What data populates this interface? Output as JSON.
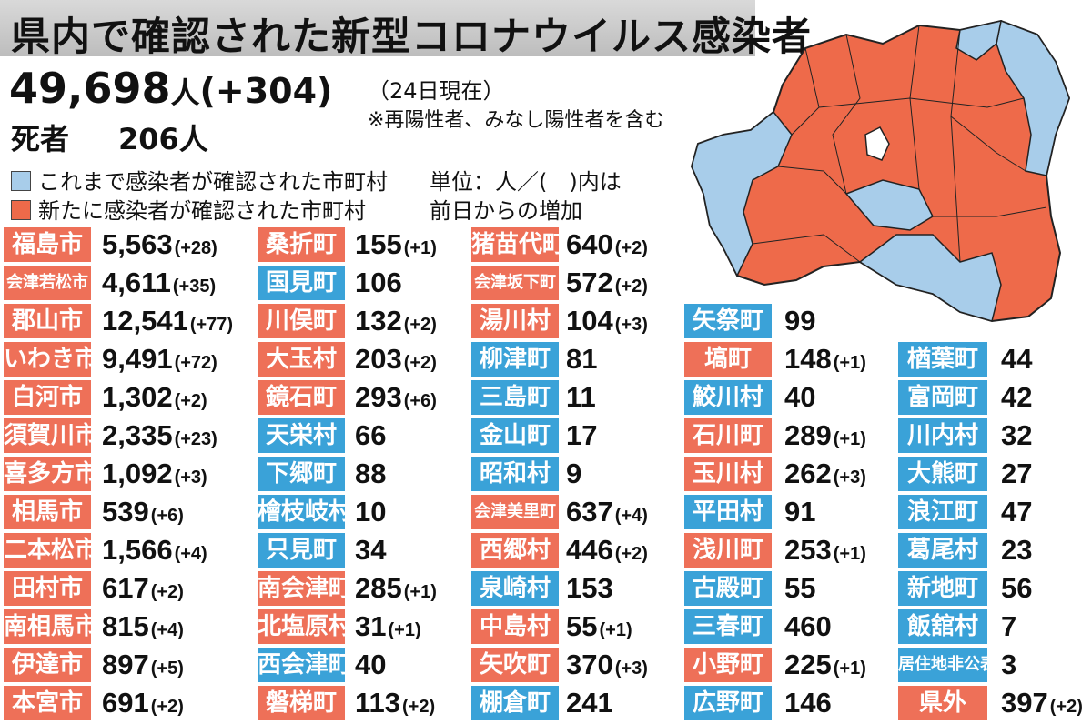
{
  "colors": {
    "new": "#ee7058",
    "old": "#3aa2d8",
    "map_old": "#a8cdea",
    "map_new": "#ee6a4a"
  },
  "header": {
    "title": "県内で確認された新型コロナウイルス感染者",
    "total": "49,698",
    "total_unit": "人",
    "total_diff": "(+304)",
    "as_of": "（24日現在）",
    "note": "※再陽性者、みなし陽性者を含む",
    "deaths_label": "死者",
    "deaths_value": "206人"
  },
  "legend": {
    "old": "これまで感染者が確認された市町村",
    "new": "新たに感染者が確認された市町村",
    "unit_line1": "単位：人／(　)内は",
    "unit_line2": "前日からの増加"
  },
  "columns": [
    [
      {
        "name": "福島市",
        "value": "5,563",
        "diff": "(+28)",
        "status": "new"
      },
      {
        "name": "会津若松市",
        "value": "4,611",
        "diff": "(+35)",
        "status": "new",
        "small": true
      },
      {
        "name": "郡山市",
        "value": "12,541",
        "diff": "(+77)",
        "status": "new"
      },
      {
        "name": "いわき市",
        "value": "9,491",
        "diff": "(+72)",
        "status": "new"
      },
      {
        "name": "白河市",
        "value": "1,302",
        "diff": "(+2)",
        "status": "new"
      },
      {
        "name": "須賀川市",
        "value": "2,335",
        "diff": "(+23)",
        "status": "new"
      },
      {
        "name": "喜多方市",
        "value": "1,092",
        "diff": "(+3)",
        "status": "new"
      },
      {
        "name": "相馬市",
        "value": "539",
        "diff": "(+6)",
        "status": "new"
      },
      {
        "name": "二本松市",
        "value": "1,566",
        "diff": "(+4)",
        "status": "new"
      },
      {
        "name": "田村市",
        "value": "617",
        "diff": "(+2)",
        "status": "new"
      },
      {
        "name": "南相馬市",
        "value": "815",
        "diff": "(+4)",
        "status": "new"
      },
      {
        "name": "伊達市",
        "value": "897",
        "diff": "(+5)",
        "status": "new"
      },
      {
        "name": "本宮市",
        "value": "691",
        "diff": "(+2)",
        "status": "new"
      }
    ],
    [
      {
        "name": "桑折町",
        "value": "155",
        "diff": "(+1)",
        "status": "new"
      },
      {
        "name": "国見町",
        "value": "106",
        "diff": "",
        "status": "old"
      },
      {
        "name": "川俣町",
        "value": "132",
        "diff": "(+2)",
        "status": "new"
      },
      {
        "name": "大玉村",
        "value": "203",
        "diff": "(+2)",
        "status": "new"
      },
      {
        "name": "鏡石町",
        "value": "293",
        "diff": "(+6)",
        "status": "new"
      },
      {
        "name": "天栄村",
        "value": "66",
        "diff": "",
        "status": "old"
      },
      {
        "name": "下郷町",
        "value": "88",
        "diff": "",
        "status": "old"
      },
      {
        "name": "檜枝岐村",
        "value": "10",
        "diff": "",
        "status": "old"
      },
      {
        "name": "只見町",
        "value": "34",
        "diff": "",
        "status": "old"
      },
      {
        "name": "南会津町",
        "value": "285",
        "diff": "(+1)",
        "status": "new"
      },
      {
        "name": "北塩原村",
        "value": "31",
        "diff": "(+1)",
        "status": "new"
      },
      {
        "name": "西会津町",
        "value": "40",
        "diff": "",
        "status": "old"
      },
      {
        "name": "磐梯町",
        "value": "113",
        "diff": "(+2)",
        "status": "new"
      }
    ],
    [
      {
        "name": "猪苗代町",
        "value": "640",
        "diff": "(+2)",
        "status": "new"
      },
      {
        "name": "会津坂下町",
        "value": "572",
        "diff": "(+2)",
        "status": "new",
        "small": true
      },
      {
        "name": "湯川村",
        "value": "104",
        "diff": "(+3)",
        "status": "new"
      },
      {
        "name": "柳津町",
        "value": "81",
        "diff": "",
        "status": "old"
      },
      {
        "name": "三島町",
        "value": "11",
        "diff": "",
        "status": "old"
      },
      {
        "name": "金山町",
        "value": "17",
        "diff": "",
        "status": "old"
      },
      {
        "name": "昭和村",
        "value": "9",
        "diff": "",
        "status": "old"
      },
      {
        "name": "会津美里町",
        "value": "637",
        "diff": "(+4)",
        "status": "new",
        "small": true
      },
      {
        "name": "西郷村",
        "value": "446",
        "diff": "(+2)",
        "status": "new"
      },
      {
        "name": "泉崎村",
        "value": "153",
        "diff": "",
        "status": "old"
      },
      {
        "name": "中島村",
        "value": "55",
        "diff": "(+1)",
        "status": "new"
      },
      {
        "name": "矢吹町",
        "value": "370",
        "diff": "(+3)",
        "status": "new"
      },
      {
        "name": "棚倉町",
        "value": "241",
        "diff": "",
        "status": "old"
      }
    ],
    [
      {
        "name": "矢祭町",
        "value": "99",
        "diff": "",
        "status": "old"
      },
      {
        "name": "塙町",
        "value": "148",
        "diff": "(+1)",
        "status": "new"
      },
      {
        "name": "鮫川村",
        "value": "40",
        "diff": "",
        "status": "old"
      },
      {
        "name": "石川町",
        "value": "289",
        "diff": "(+1)",
        "status": "new"
      },
      {
        "name": "玉川村",
        "value": "262",
        "diff": "(+3)",
        "status": "new"
      },
      {
        "name": "平田村",
        "value": "91",
        "diff": "",
        "status": "old"
      },
      {
        "name": "浅川町",
        "value": "253",
        "diff": "(+1)",
        "status": "new"
      },
      {
        "name": "古殿町",
        "value": "55",
        "diff": "",
        "status": "old"
      },
      {
        "name": "三春町",
        "value": "460",
        "diff": "",
        "status": "old"
      },
      {
        "name": "小野町",
        "value": "225",
        "diff": "(+1)",
        "status": "new"
      },
      {
        "name": "広野町",
        "value": "146",
        "diff": "",
        "status": "old"
      }
    ],
    [
      {
        "name": "楢葉町",
        "value": "44",
        "diff": "",
        "status": "old"
      },
      {
        "name": "富岡町",
        "value": "42",
        "diff": "",
        "status": "old"
      },
      {
        "name": "川内村",
        "value": "32",
        "diff": "",
        "status": "old"
      },
      {
        "name": "大熊町",
        "value": "27",
        "diff": "",
        "status": "old"
      },
      {
        "name": "浪江町",
        "value": "47",
        "diff": "",
        "status": "old"
      },
      {
        "name": "葛尾村",
        "value": "23",
        "diff": "",
        "status": "old"
      },
      {
        "name": "新地町",
        "value": "56",
        "diff": "",
        "status": "old"
      },
      {
        "name": "飯舘村",
        "value": "7",
        "diff": "",
        "status": "old"
      },
      {
        "name": "居住地非公表",
        "value": "3",
        "diff": "",
        "status": "old",
        "small": true
      },
      {
        "name": "県外",
        "value": "397",
        "diff": "(+2)",
        "status": "new"
      }
    ]
  ]
}
